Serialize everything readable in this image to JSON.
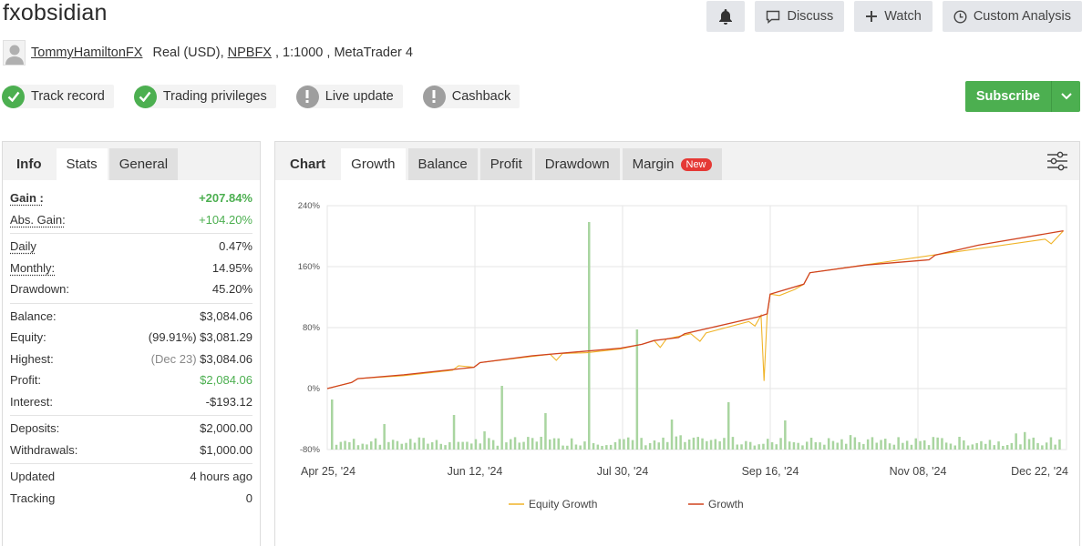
{
  "header": {
    "title": "fxobsidian",
    "actions": {
      "discuss": "Discuss",
      "watch": "Watch",
      "custom_analysis": "Custom Analysis"
    }
  },
  "account": {
    "owner": "TommyHamiltonFX",
    "type": "Real (USD),",
    "broker": "NPBFX",
    "leverage": ", 1:1000 ,",
    "platform": "MetaTrader 4"
  },
  "badges": [
    {
      "label": "Track record",
      "status": "verified"
    },
    {
      "label": "Trading privileges",
      "status": "verified"
    },
    {
      "label": "Live update",
      "status": "unavailable"
    },
    {
      "label": "Cashback",
      "status": "unavailable"
    }
  ],
  "subscribe_label": "Subscribe",
  "stats_panel": {
    "tabs": [
      "Info",
      "Stats",
      "General"
    ],
    "gain_label": "Gain :",
    "gain": "+207.84%",
    "abs_gain_label": "Abs. Gain:",
    "abs_gain": "+104.20%",
    "daily_label": "Daily",
    "daily": "0.47%",
    "monthly_label": "Monthly:",
    "monthly": "14.95%",
    "drawdown_label": "Drawdown:",
    "drawdown": "45.20%",
    "balance_label": "Balance:",
    "balance": "$3,084.06",
    "equity_label": "Equity:",
    "equity_pct": "(99.91%)",
    "equity": "$3,081.29",
    "highest_label": "Highest:",
    "highest_date": "(Dec 23)",
    "highest": "$3,084.06",
    "profit_label": "Profit:",
    "profit": "$2,084.06",
    "interest_label": "Interest:",
    "interest": "-$193.12",
    "deposits_label": "Deposits:",
    "deposits": "$2,000.00",
    "withdrawals_label": "Withdrawals:",
    "withdrawals": "$1,000.00",
    "updated_label": "Updated",
    "updated": "4 hours ago",
    "tracking_label": "Tracking",
    "tracking": "0"
  },
  "chart_panel": {
    "tabs": [
      "Chart",
      "Growth",
      "Balance",
      "Profit",
      "Drawdown",
      "Margin"
    ],
    "new_badge": "New"
  },
  "colors": {
    "green": "#4caf50",
    "growth_line": "#d0431f",
    "equity_line": "#f0b429",
    "volume_bar": "#a9d5a0"
  },
  "chart_data": {
    "type": "line",
    "x_labels": [
      "Apr 25, '24",
      "Jun 12, '24",
      "Jul 30, '24",
      "Sep 16, '24",
      "Nov 08, '24",
      "Dec 22, '24"
    ],
    "x_range": [
      "2024-04-25",
      "2024-12-23"
    ],
    "ylim": [
      -80,
      240
    ],
    "y_ticks": [
      -80,
      0,
      80,
      160,
      240
    ],
    "y_tick_labels": [
      "-80%",
      "0%",
      "80%",
      "160%",
      "240%"
    ],
    "legend": [
      "Equity Growth",
      "Growth"
    ],
    "legend_position": "bottom",
    "grid": true,
    "series": [
      {
        "name": "Growth",
        "points": [
          [
            "2024-04-25",
            0
          ],
          [
            "2024-05-03",
            8
          ],
          [
            "2024-05-05",
            13
          ],
          [
            "2024-05-20",
            18
          ],
          [
            "2024-06-12",
            28
          ],
          [
            "2024-06-14",
            34
          ],
          [
            "2024-07-01",
            43
          ],
          [
            "2024-07-30",
            53
          ],
          [
            "2024-08-06",
            58
          ],
          [
            "2024-08-10",
            63
          ],
          [
            "2024-08-18",
            67
          ],
          [
            "2024-08-20",
            72
          ],
          [
            "2024-09-13",
            94
          ],
          [
            "2024-09-16",
            98
          ],
          [
            "2024-09-17",
            124
          ],
          [
            "2024-09-28",
            137
          ],
          [
            "2024-09-30",
            152
          ],
          [
            "2024-10-18",
            162
          ],
          [
            "2024-11-08",
            169
          ],
          [
            "2024-11-10",
            175
          ],
          [
            "2024-11-24",
            188
          ],
          [
            "2024-12-22",
            207
          ]
        ]
      },
      {
        "name": "Equity Growth",
        "points": [
          [
            "2024-04-25",
            0
          ],
          [
            "2024-05-03",
            8
          ],
          [
            "2024-05-05",
            13
          ],
          [
            "2024-05-20",
            17
          ],
          [
            "2024-06-05",
            24
          ],
          [
            "2024-06-07",
            30
          ],
          [
            "2024-06-12",
            28
          ],
          [
            "2024-06-14",
            34
          ],
          [
            "2024-07-07",
            45
          ],
          [
            "2024-07-09",
            37
          ],
          [
            "2024-07-11",
            46
          ],
          [
            "2024-07-19",
            47
          ],
          [
            "2024-07-30",
            52
          ],
          [
            "2024-08-06",
            58
          ],
          [
            "2024-08-10",
            63
          ],
          [
            "2024-08-12",
            54
          ],
          [
            "2024-08-14",
            65
          ],
          [
            "2024-08-22",
            72
          ],
          [
            "2024-08-25",
            62
          ],
          [
            "2024-08-27",
            73
          ],
          [
            "2024-09-10",
            88
          ],
          [
            "2024-09-12",
            82
          ],
          [
            "2024-09-14",
            96
          ],
          [
            "2024-09-15",
            10
          ],
          [
            "2024-09-16",
            96
          ],
          [
            "2024-09-17",
            124
          ],
          [
            "2024-09-20",
            122
          ],
          [
            "2024-09-25",
            130
          ],
          [
            "2024-09-28",
            137
          ],
          [
            "2024-09-30",
            152
          ],
          [
            "2024-12-16",
            196
          ],
          [
            "2024-12-18",
            190
          ],
          [
            "2024-12-22",
            207
          ]
        ]
      }
    ]
  }
}
